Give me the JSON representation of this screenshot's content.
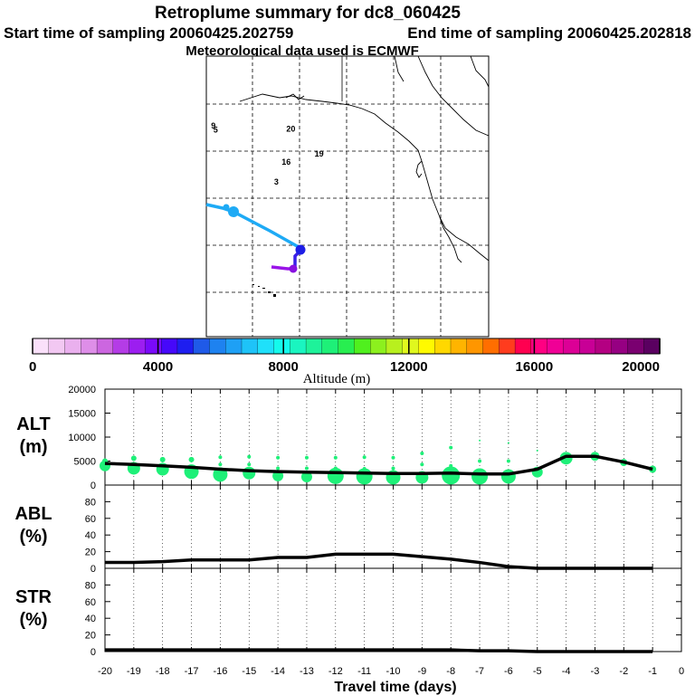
{
  "header": {
    "title": "Retroplume summary for dc8_060425",
    "start": "Start time of sampling 20060425.202759",
    "end": "End time of sampling 20060425.202818",
    "met": "Meteorological data used is ECMWF"
  },
  "map": {
    "day_labels": [
      {
        "text": "9",
        "lon": -159.0,
        "lat": 44.5
      },
      {
        "text": "5",
        "lon": -158.5,
        "lat": 43.6
      },
      {
        "text": "20",
        "lon": -143.0,
        "lat": 43.8
      },
      {
        "text": "19",
        "lon": -137.0,
        "lat": 38.5
      },
      {
        "text": "16",
        "lon": -144.0,
        "lat": 36.8
      },
      {
        "text": "3",
        "lon": -145.6,
        "lat": 32.5
      }
    ]
  },
  "colorbar": {
    "label": "Altitude (m)",
    "ticks": [
      "0",
      "4000",
      "8000",
      "12000",
      "16000",
      "20000"
    ],
    "colors": [
      "#fae0fa",
      "#f2c8f2",
      "#eab0ee",
      "#de8ee8",
      "#cc66e0",
      "#b43ce6",
      "#9c1ef0",
      "#7a0afa",
      "#4608fa",
      "#1e1ef0",
      "#1f5ae8",
      "#1e82f0",
      "#1ea0f5",
      "#1ec3f8",
      "#1fe0fa",
      "#14faec",
      "#1af5c0",
      "#1ef29a",
      "#1ef078",
      "#28ee50",
      "#50f01e",
      "#8cf01e",
      "#b8f01e",
      "#e0f81e",
      "#fffa00",
      "#ffd800",
      "#ffb400",
      "#ff9600",
      "#ff6e00",
      "#ff3c1e",
      "#ff0050",
      "#ff0082",
      "#f00096",
      "#dc0096",
      "#c80096",
      "#b40082",
      "#960082",
      "#7a0070",
      "#5a0060"
    ]
  },
  "chart_data": [
    {
      "type": "scatter",
      "name": "ALT",
      "ylabel": "ALT",
      "yunit": "(m)",
      "ylim": [
        0,
        20000
      ],
      "yticks": [
        "0",
        "5000",
        "10000",
        "15000",
        "20000"
      ],
      "xlim": [
        -20,
        0
      ],
      "line": {
        "x": [
          -20,
          -19,
          -18,
          -17,
          -16,
          -15,
          -14,
          -13,
          -12,
          -11,
          -10,
          -9,
          -8,
          -7,
          -6,
          -5,
          -4,
          -3,
          -2,
          -1
        ],
        "y": [
          4500,
          4300,
          4000,
          3700,
          3300,
          3000,
          2800,
          2700,
          2600,
          2500,
          2400,
          2400,
          2500,
          2300,
          2300,
          3300,
          6000,
          6000,
          4800,
          3300
        ]
      },
      "dots": {
        "x": [
          -20,
          -20,
          -19,
          -19,
          -18,
          -18,
          -17,
          -17,
          -16,
          -16,
          -16,
          -15,
          -15,
          -15,
          -14,
          -14,
          -14,
          -13,
          -13,
          -13,
          -12,
          -12,
          -12,
          -11,
          -11,
          -11,
          -10,
          -10,
          -10,
          -9,
          -9,
          -9,
          -8,
          -8,
          -8,
          -7,
          -7,
          -7,
          -6,
          -6,
          -6,
          -5,
          -5,
          -4,
          -3,
          -2,
          -1
        ],
        "y": [
          4000,
          5000,
          3500,
          5600,
          3300,
          5300,
          2800,
          5300,
          2200,
          4300,
          5800,
          2500,
          4300,
          5900,
          1900,
          3500,
          5700,
          1700,
          3500,
          5700,
          1900,
          3500,
          5700,
          1800,
          3400,
          5800,
          1600,
          3500,
          5700,
          1600,
          4300,
          6600,
          2000,
          4000,
          7800,
          1800,
          5000,
          9300,
          1800,
          5000,
          8800,
          2700,
          7200,
          5600,
          6000,
          4700,
          3300
        ],
        "size": [
          6,
          3,
          7,
          3,
          7,
          3,
          8,
          3,
          8,
          2,
          2,
          7,
          2,
          2,
          6,
          2,
          2,
          6,
          2,
          2,
          9,
          2,
          2,
          9,
          2,
          2,
          8,
          2,
          2,
          7,
          2,
          2,
          10,
          2,
          2,
          9,
          2,
          1,
          8,
          2,
          1,
          6,
          1,
          7,
          5,
          4,
          4
        ]
      }
    },
    {
      "type": "line",
      "name": "ABL",
      "ylabel": "ABL",
      "yunit": "(%)",
      "ylim": [
        0,
        100
      ],
      "yticks": [
        "0",
        "20",
        "40",
        "60",
        "80"
      ],
      "x": [
        -20,
        -19,
        -18,
        -17,
        -16,
        -15,
        -14,
        -13,
        -12,
        -11,
        -10,
        -9,
        -8,
        -7,
        -6,
        -5,
        -4,
        -3,
        -2,
        -1
      ],
      "y": [
        7,
        7,
        8,
        10,
        10,
        10,
        13,
        13,
        17,
        17,
        17,
        14,
        11,
        7,
        2,
        0,
        0,
        0,
        0,
        0
      ]
    },
    {
      "type": "line",
      "name": "STR",
      "ylabel": "STR",
      "yunit": "(%)",
      "ylim": [
        0,
        100
      ],
      "yticks": [
        "0",
        "20",
        "40",
        "60",
        "80"
      ],
      "x": [
        -20,
        -19,
        -18,
        -17,
        -16,
        -15,
        -14,
        -13,
        -12,
        -11,
        -10,
        -9,
        -8,
        -7,
        -6,
        -5,
        -4,
        -3,
        -2,
        -1
      ],
      "y": [
        2,
        2,
        2,
        2,
        2,
        2,
        2,
        2,
        2,
        2,
        2,
        2,
        2,
        1,
        1,
        0,
        0,
        0,
        0,
        0
      ],
      "xlabel": "Travel time (days)",
      "xticks": [
        "-20",
        "-19",
        "-18",
        "-17",
        "-16",
        "-15",
        "-14",
        "-13",
        "-12",
        "-11",
        "-10",
        "-9",
        "-8",
        "-7",
        "-6",
        "-5",
        "-4",
        "-3",
        "-2",
        "-1",
        "0"
      ]
    }
  ]
}
